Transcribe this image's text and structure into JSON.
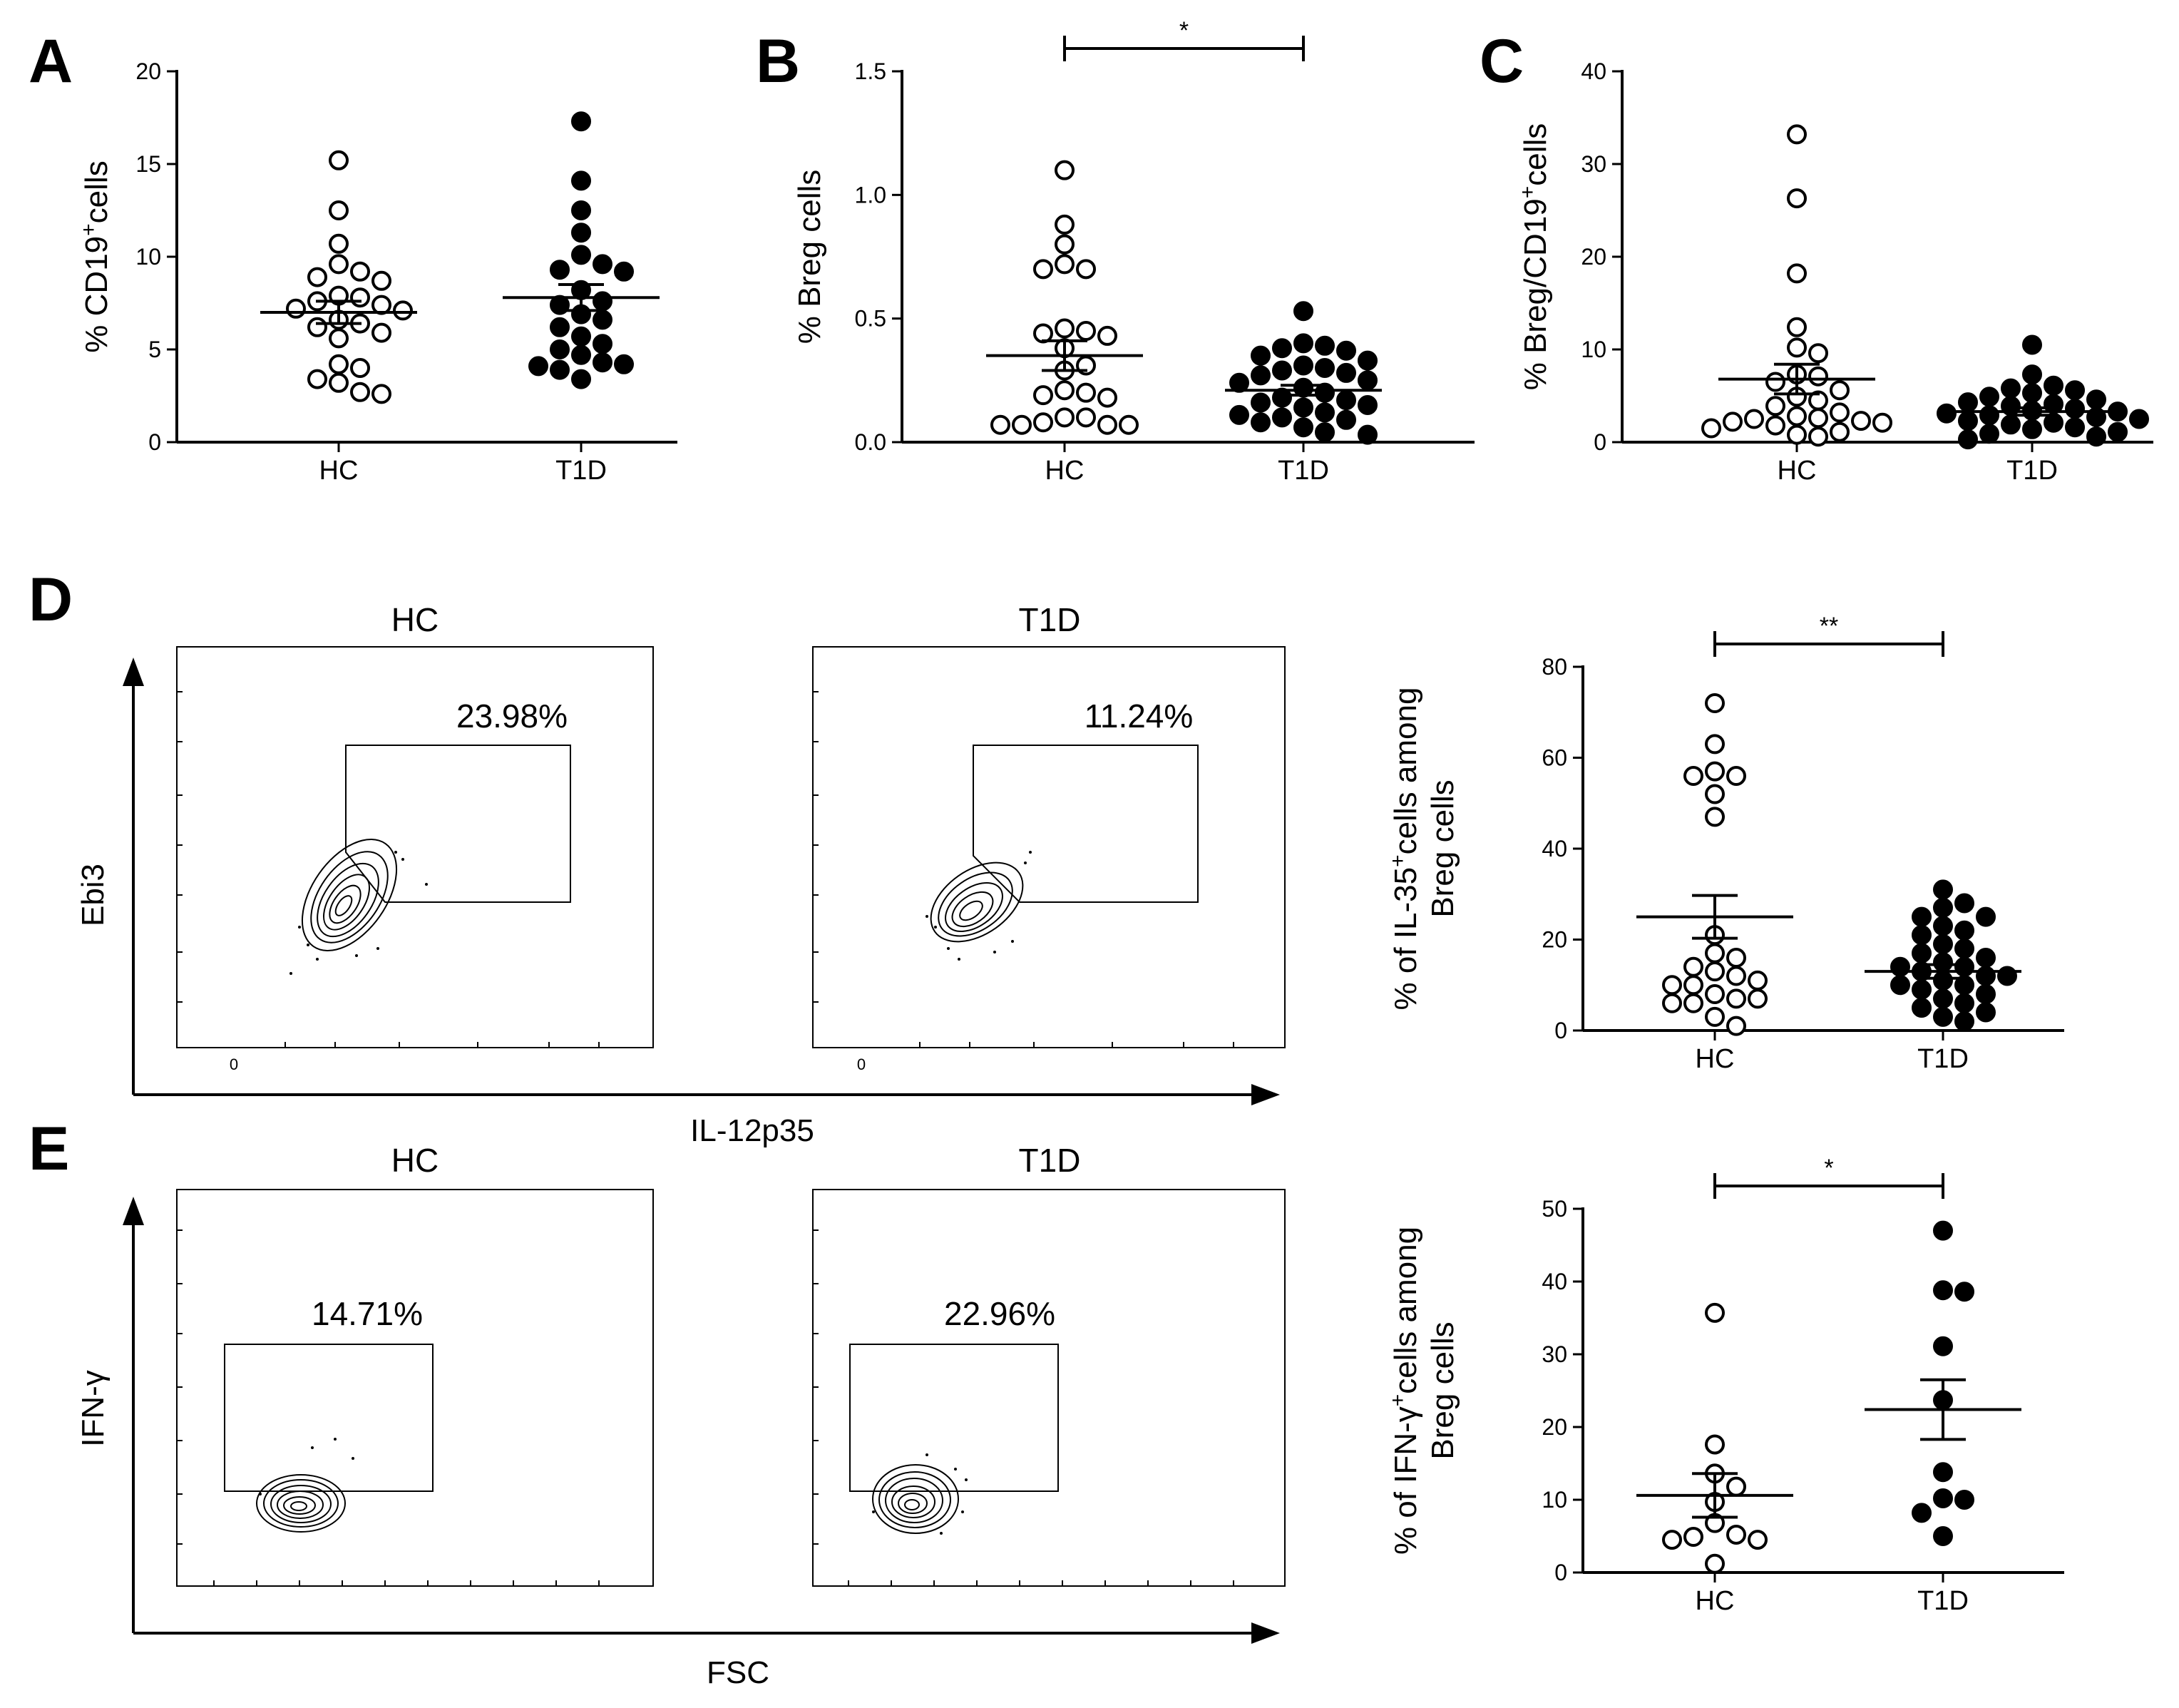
{
  "colors": {
    "ink": "#000000",
    "open_fill": "#ffffff",
    "closed_fill": "#000000",
    "background": "#ffffff"
  },
  "panels": [
    {
      "letter": "A"
    },
    {
      "letter": "B"
    },
    {
      "letter": "C"
    },
    {
      "letter": "D"
    },
    {
      "letter": "E"
    }
  ],
  "chart_data": [
    {
      "id": "A",
      "type": "scatter",
      "ylabel": "% CD19",
      "ylabel_sup": "+",
      "ylabel_suffix": "cells",
      "ylim": [
        0,
        20
      ],
      "yticks": [
        0,
        5,
        10,
        15,
        20
      ],
      "categories": [
        "HC",
        "T1D"
      ],
      "significance": null,
      "groups": [
        {
          "name": "HC",
          "marker": "open",
          "values": [
            15.2,
            12.5,
            10.7,
            9.6,
            9.2,
            8.9,
            8.7,
            7.9,
            7.8,
            7.6,
            7.4,
            7.2,
            7.1,
            6.6,
            6.4,
            6.2,
            5.9,
            5.6,
            4.2,
            4.0,
            3.4,
            3.2,
            2.7,
            2.6
          ],
          "mean": 7.0,
          "sem": 0.6
        },
        {
          "name": "T1D",
          "marker": "filled",
          "values": [
            17.3,
            14.1,
            12.5,
            11.3,
            10.1,
            9.6,
            9.3,
            9.2,
            8.2,
            7.6,
            7.4,
            6.9,
            6.6,
            6.2,
            5.7,
            5.3,
            5.0,
            4.7,
            4.3,
            4.2,
            4.1,
            3.9,
            3.4
          ],
          "mean": 7.8,
          "sem": 0.7
        }
      ]
    },
    {
      "id": "B",
      "type": "scatter",
      "ylabel": "% Breg cells",
      "ylim": [
        0,
        1.5
      ],
      "yticks": [
        0,
        0.5,
        1.0,
        1.5
      ],
      "ytick_labels": [
        "0.0",
        "0.5",
        "1.0",
        "1.5"
      ],
      "categories": [
        "HC",
        "T1D"
      ],
      "significance": "*",
      "groups": [
        {
          "name": "HC",
          "marker": "open",
          "values": [
            1.1,
            0.88,
            0.8,
            0.72,
            0.7,
            0.7,
            0.46,
            0.45,
            0.44,
            0.43,
            0.38,
            0.31,
            0.29,
            0.21,
            0.2,
            0.19,
            0.18,
            0.1,
            0.1,
            0.08,
            0.07,
            0.07,
            0.07,
            0.07
          ],
          "mean": 0.35,
          "sem": 0.06
        },
        {
          "name": "T1D",
          "marker": "filled",
          "values": [
            0.53,
            0.4,
            0.39,
            0.38,
            0.37,
            0.35,
            0.33,
            0.31,
            0.3,
            0.29,
            0.28,
            0.27,
            0.25,
            0.24,
            0.22,
            0.2,
            0.18,
            0.17,
            0.16,
            0.15,
            0.14,
            0.12,
            0.11,
            0.1,
            0.09,
            0.08,
            0.06,
            0.04,
            0.03
          ],
          "mean": 0.21,
          "sem": 0.02
        }
      ]
    },
    {
      "id": "C",
      "type": "scatter",
      "ylabel": "% Breg/CD19",
      "ylabel_sup": "+",
      "ylabel_suffix": "cells",
      "ylim": [
        0,
        40
      ],
      "yticks": [
        0,
        10,
        20,
        30,
        40
      ],
      "categories": [
        "HC",
        "T1D"
      ],
      "significance": null,
      "groups": [
        {
          "name": "HC",
          "marker": "open",
          "values": [
            33.2,
            26.3,
            18.2,
            12.4,
            10.2,
            9.6,
            7.3,
            7.1,
            6.5,
            5.6,
            4.9,
            4.5,
            3.9,
            3.2,
            2.8,
            2.6,
            2.5,
            2.3,
            2.2,
            2.1,
            1.8,
            1.5,
            1.1,
            0.8,
            0.6
          ],
          "mean": 6.8,
          "sem": 1.6
        },
        {
          "name": "T1D",
          "marker": "filled",
          "values": [
            10.5,
            7.3,
            6.1,
            5.8,
            5.6,
            5.3,
            4.9,
            4.6,
            4.3,
            4.1,
            3.9,
            3.6,
            3.4,
            3.3,
            3.1,
            2.9,
            2.7,
            2.5,
            2.3,
            2.1,
            1.9,
            1.6,
            1.4,
            1.1,
            0.9,
            0.6,
            0.3
          ],
          "mean": 3.3,
          "sem": 0.4
        }
      ]
    },
    {
      "id": "D",
      "type": "scatter",
      "ylabel": "% of IL-35",
      "ylabel_sup": "+",
      "ylabel_suffix": "cells among",
      "ylabel_line2": "Breg cells",
      "ylim": [
        0,
        80
      ],
      "yticks": [
        0,
        20,
        40,
        60,
        80
      ],
      "categories": [
        "HC",
        "T1D"
      ],
      "significance": "**",
      "groups": [
        {
          "name": "HC",
          "marker": "open",
          "values": [
            72,
            63,
            57,
            56,
            56,
            52,
            47,
            21,
            17,
            16,
            14,
            13,
            12,
            11,
            10,
            10,
            8,
            7,
            7,
            6,
            6,
            3,
            1
          ],
          "mean": 25,
          "sem": 4.7
        },
        {
          "name": "T1D",
          "marker": "filled",
          "values": [
            31,
            28,
            27,
            25,
            25,
            23,
            22,
            21,
            19,
            18,
            17,
            16,
            15,
            14,
            14,
            13,
            12,
            12,
            11,
            10,
            10,
            9,
            8,
            7,
            6,
            5,
            4,
            3,
            2
          ],
          "mean": 13,
          "sem": 1.5
        }
      ]
    },
    {
      "id": "E",
      "type": "scatter",
      "ylabel": "% of IFN-γ",
      "ylabel_sup": "+",
      "ylabel_suffix": "cells among",
      "ylabel_line2": "Breg cells",
      "ylim": [
        0,
        50
      ],
      "yticks": [
        0,
        10,
        20,
        30,
        40,
        50
      ],
      "categories": [
        "HC",
        "T1D"
      ],
      "significance": "*",
      "groups": [
        {
          "name": "HC",
          "marker": "open",
          "values": [
            35.7,
            17.6,
            13.6,
            11.8,
            9.7,
            6.8,
            5.2,
            4.9,
            4.5,
            4.5,
            1.2
          ],
          "mean": 10.6,
          "sem": 3.0
        },
        {
          "name": "T1D",
          "marker": "filled",
          "values": [
            47.0,
            38.8,
            38.6,
            31.1,
            23.7,
            13.8,
            10.2,
            10.0,
            8.2,
            5.0
          ],
          "mean": 22.4,
          "sem": 4.1
        }
      ]
    }
  ],
  "flow": {
    "D": {
      "x_label": "IL-12p35",
      "y_label": "Ebi3",
      "zero_label": "0",
      "plots": [
        {
          "title": "HC",
          "gate_pct": "23.98%"
        },
        {
          "title": "T1D",
          "gate_pct": "11.24%"
        }
      ]
    },
    "E": {
      "x_label": "FSC",
      "y_label": "IFN-γ",
      "plots": [
        {
          "title": "HC",
          "gate_pct": "14.71%"
        },
        {
          "title": "T1D",
          "gate_pct": "22.96%"
        }
      ]
    }
  }
}
